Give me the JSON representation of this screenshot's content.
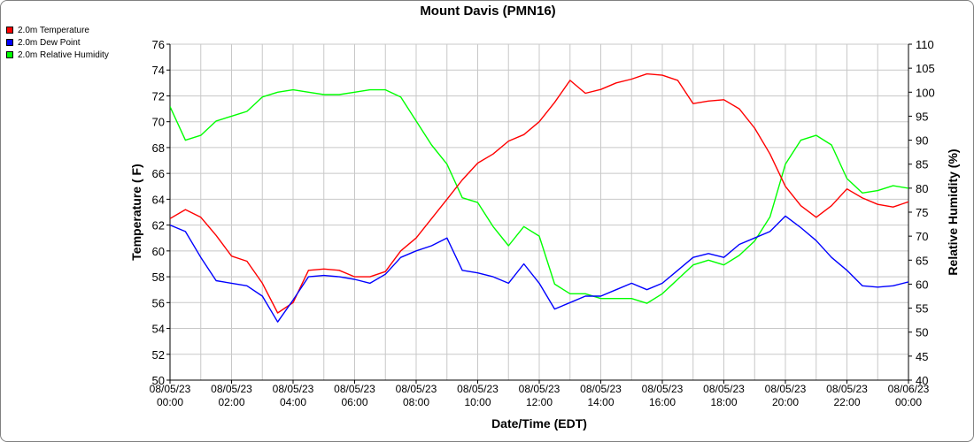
{
  "chart_data": {
    "type": "line",
    "title": "Mount Davis (PMN16)",
    "xlabel": "Date/Time (EDT)",
    "ylabel_left": "Temperature ( F)",
    "ylabel_right": "Relative Humidity (%)",
    "ylim_left": [
      50,
      76
    ],
    "ylim_right": [
      40,
      110
    ],
    "yticks_left": [
      "50",
      "52",
      "54",
      "56",
      "58",
      "60",
      "62",
      "64",
      "66",
      "68",
      "70",
      "72",
      "74",
      "76"
    ],
    "yticks_right": [
      "40",
      "45",
      "50",
      "55",
      "60",
      "65",
      "70",
      "75",
      "80",
      "85",
      "90",
      "95",
      "100",
      "105",
      "110"
    ],
    "xticks": [
      {
        "date": "08/05/23",
        "time": "00:00"
      },
      {
        "date": "08/05/23",
        "time": "02:00"
      },
      {
        "date": "08/05/23",
        "time": "04:00"
      },
      {
        "date": "08/05/23",
        "time": "06:00"
      },
      {
        "date": "08/05/23",
        "time": "08:00"
      },
      {
        "date": "08/05/23",
        "time": "10:00"
      },
      {
        "date": "08/05/23",
        "time": "12:00"
      },
      {
        "date": "08/05/23",
        "time": "14:00"
      },
      {
        "date": "08/05/23",
        "time": "16:00"
      },
      {
        "date": "08/05/23",
        "time": "18:00"
      },
      {
        "date": "08/05/23",
        "time": "20:00"
      },
      {
        "date": "08/05/23",
        "time": "22:00"
      },
      {
        "date": "08/06/23",
        "time": "00:00"
      }
    ],
    "x_hours": [
      0,
      0.5,
      1,
      1.5,
      2,
      2.5,
      3,
      3.5,
      4,
      4.5,
      5,
      5.5,
      6,
      6.5,
      7,
      7.5,
      8,
      8.5,
      9,
      9.5,
      10,
      10.5,
      11,
      11.5,
      12,
      12.5,
      13,
      13.5,
      14,
      14.5,
      15,
      15.5,
      16,
      16.5,
      17,
      17.5,
      18,
      18.5,
      19,
      19.5,
      20,
      20.5,
      21,
      21.5,
      22,
      22.5,
      23,
      23.5,
      24
    ],
    "legend_position": "top-left",
    "grid": true,
    "series": [
      {
        "name": "2.0m Temperature",
        "color": "#ff0000",
        "axis": "left",
        "values": [
          62.5,
          63.2,
          62.6,
          61.2,
          59.6,
          59.2,
          57.5,
          55.2,
          56.0,
          58.5,
          58.6,
          58.5,
          58.0,
          58.0,
          58.4,
          60.0,
          61.0,
          62.5,
          64.0,
          65.5,
          66.8,
          67.5,
          68.5,
          69.0,
          70.0,
          71.5,
          73.2,
          72.2,
          72.5,
          73.0,
          73.3,
          73.7,
          73.6,
          73.2,
          71.4,
          71.6,
          71.7,
          71.0,
          69.5,
          67.5,
          65.0,
          63.5,
          62.6,
          63.5,
          64.8,
          64.1,
          63.6,
          63.4,
          63.8
        ]
      },
      {
        "name": "2.0m Dew Point",
        "color": "#0000ff",
        "axis": "left",
        "values": [
          62.0,
          61.5,
          59.5,
          57.7,
          57.5,
          57.3,
          56.5,
          54.5,
          56.2,
          58.0,
          58.1,
          58.0,
          57.8,
          57.5,
          58.2,
          59.5,
          60.0,
          60.4,
          61.0,
          58.5,
          58.3,
          58.0,
          57.5,
          59.0,
          57.5,
          55.5,
          56.0,
          56.5,
          56.5,
          57.0,
          57.5,
          57.0,
          57.5,
          58.5,
          59.5,
          59.8,
          59.5,
          60.5,
          61.0,
          61.5,
          62.7,
          61.8,
          60.8,
          59.5,
          58.5,
          57.3,
          57.2,
          57.3,
          57.6
        ]
      },
      {
        "name": "2.0m Relative Humidity",
        "color": "#00ff00",
        "axis": "right",
        "values": [
          97.0,
          90.0,
          91.0,
          94.0,
          95.0,
          96.0,
          99.0,
          100.0,
          100.5,
          100.0,
          99.5,
          99.5,
          100.0,
          100.5,
          100.5,
          99.0,
          94.0,
          89.0,
          85.0,
          78.0,
          77.0,
          72.0,
          68.0,
          72.0,
          70.0,
          60.0,
          58.0,
          58.0,
          57.0,
          57.0,
          57.0,
          56.0,
          58.0,
          61.0,
          64.0,
          65.0,
          64.0,
          66.0,
          69.0,
          74.0,
          85.0,
          90.0,
          91.0,
          89.0,
          82.0,
          79.0,
          79.5,
          80.5,
          80.0
        ]
      }
    ]
  }
}
